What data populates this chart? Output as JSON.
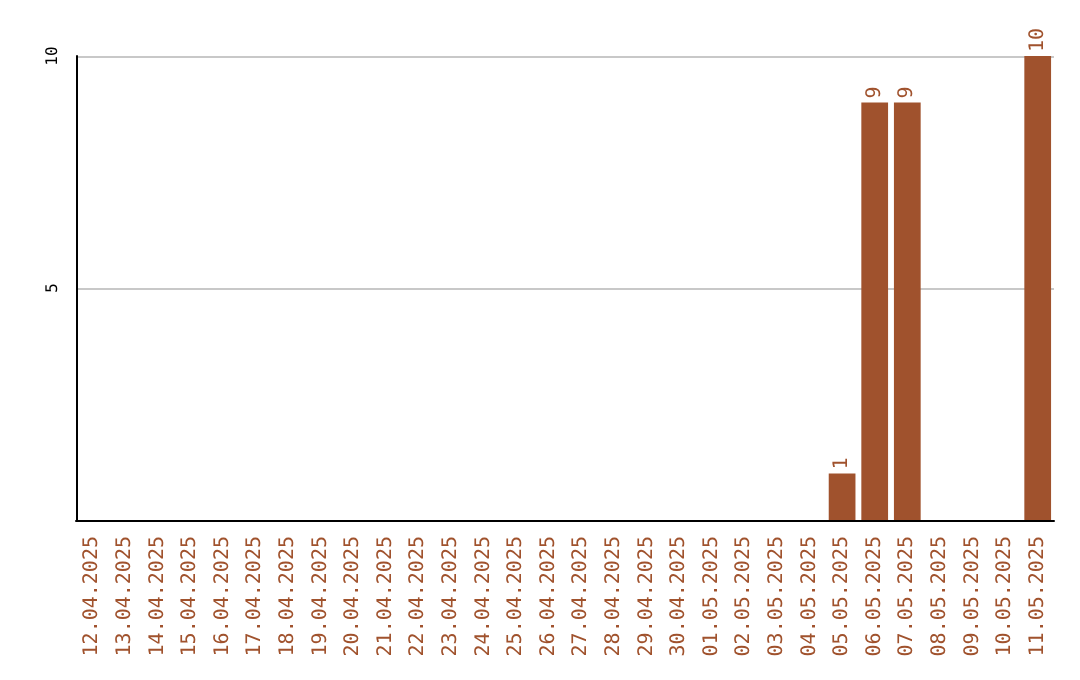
{
  "chart_data": {
    "type": "bar",
    "categories": [
      "12.04.2025",
      "13.04.2025",
      "14.04.2025",
      "15.04.2025",
      "16.04.2025",
      "17.04.2025",
      "18.04.2025",
      "19.04.2025",
      "20.04.2025",
      "21.04.2025",
      "22.04.2025",
      "23.04.2025",
      "24.04.2025",
      "25.04.2025",
      "26.04.2025",
      "27.04.2025",
      "28.04.2025",
      "29.04.2025",
      "30.04.2025",
      "01.05.2025",
      "02.05.2025",
      "03.05.2025",
      "04.05.2025",
      "05.05.2025",
      "06.05.2025",
      "07.05.2025",
      "08.05.2025",
      "09.05.2025",
      "10.05.2025",
      "11.05.2025"
    ],
    "values": [
      0,
      0,
      0,
      0,
      0,
      0,
      0,
      0,
      0,
      0,
      0,
      0,
      0,
      0,
      0,
      0,
      0,
      0,
      0,
      0,
      0,
      0,
      0,
      1,
      9,
      9,
      0,
      0,
      0,
      10
    ],
    "value_labels": [
      null,
      null,
      null,
      null,
      null,
      null,
      null,
      null,
      null,
      null,
      null,
      null,
      null,
      null,
      null,
      null,
      null,
      null,
      null,
      null,
      null,
      null,
      null,
      "1",
      "9",
      "9",
      null,
      null,
      null,
      "10"
    ],
    "color": "#a0522d",
    "ylim": [
      0,
      10
    ],
    "yticks": [
      5,
      10
    ],
    "grid": "y"
  }
}
